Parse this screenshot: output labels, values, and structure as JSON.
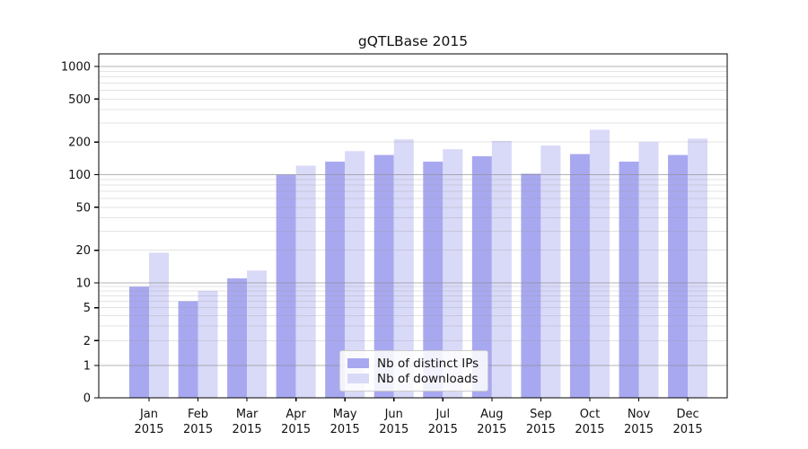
{
  "figure": {
    "background": "#ffffff"
  },
  "chart_data": {
    "type": "bar",
    "title": "gQTLBase 2015",
    "categories": [
      "Jan",
      "Feb",
      "Mar",
      "Apr",
      "May",
      "Jun",
      "Jul",
      "Aug",
      "Sep",
      "Oct",
      "Nov",
      "Dec"
    ],
    "x_tick_year": "2015",
    "series": [
      {
        "name": "Nb of distinct IPs",
        "color": "#a8a8f0",
        "values": [
          9,
          6,
          11,
          100,
          132,
          152,
          132,
          148,
          102,
          155,
          132,
          152
        ]
      },
      {
        "name": "Nb of downloads",
        "color": "#d9d9f8",
        "values": [
          19,
          8,
          13,
          121,
          165,
          212,
          172,
          205,
          186,
          260,
          200,
          215
        ]
      }
    ],
    "yscale": "symlog",
    "y_ticks": [
      0,
      1,
      2,
      5,
      10,
      20,
      50,
      100,
      200,
      500,
      1000
    ],
    "ylim": [
      0,
      1300
    ],
    "grid": {
      "major": [
        1,
        10,
        100,
        1000
      ],
      "minor": [
        2,
        3,
        4,
        5,
        6,
        7,
        8,
        9,
        20,
        30,
        40,
        50,
        60,
        70,
        80,
        90,
        200,
        300,
        400,
        500,
        600,
        700,
        800,
        900
      ],
      "major_color": "#8a8a8a",
      "minor_color": "#999999"
    },
    "legend_position": "lower-center",
    "axis_color": "#000000",
    "text_color": "#111111"
  }
}
